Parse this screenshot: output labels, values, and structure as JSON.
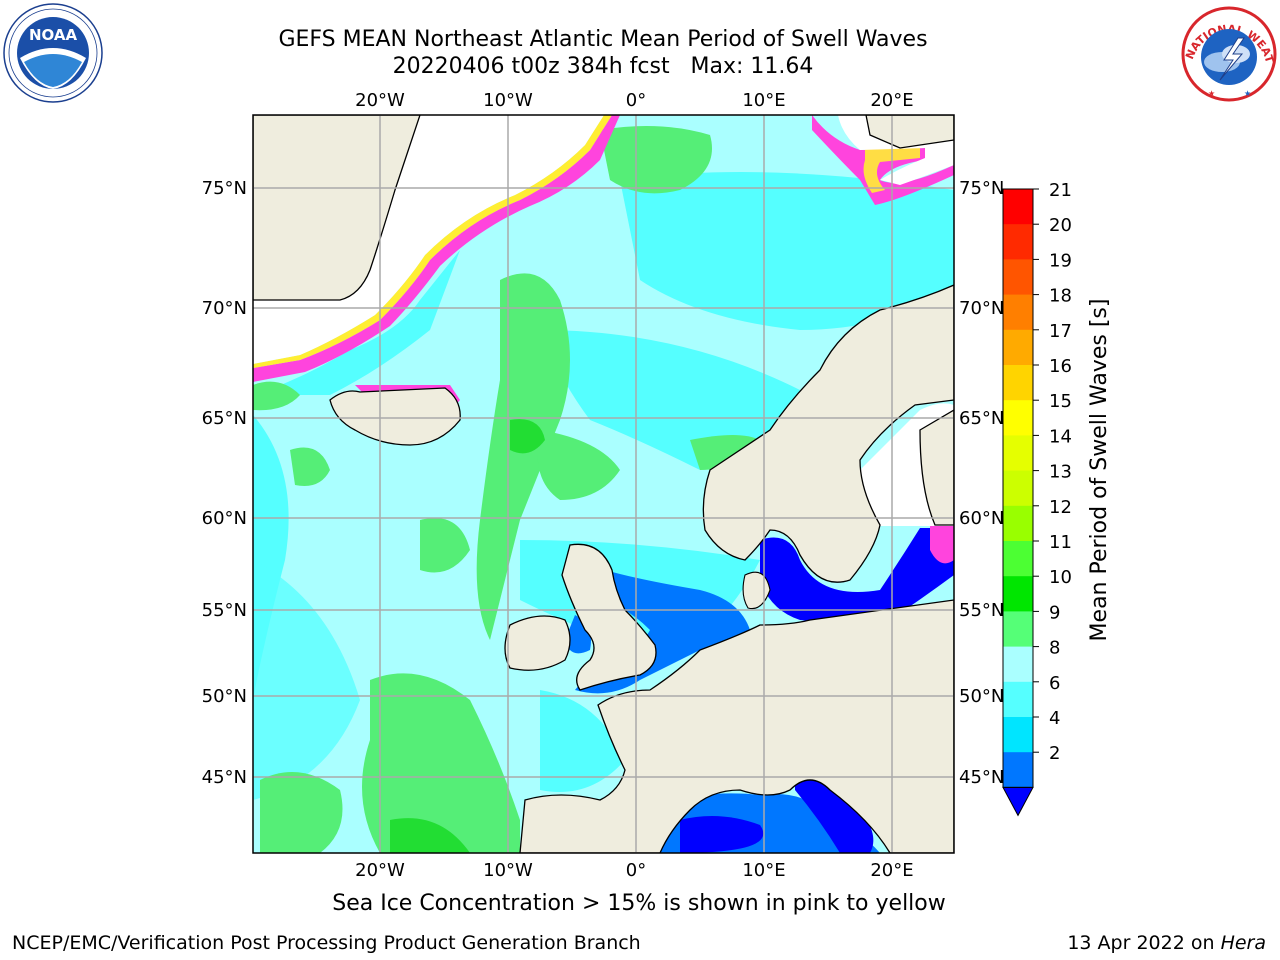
{
  "title_line1": "GEFS MEAN Northeast Atlantic Mean Period of Swell Waves",
  "title_line2": "20220406 t00z 384h fcst   Max: 11.64",
  "caption": "Sea Ice Concentration > 15% is shown in pink to yellow",
  "footer_left": "NCEP/EMC/Verification Post Processing Product Generation Branch",
  "footer_date": "13 Apr 2022 on ",
  "footer_machine": "Hera",
  "map": {
    "lon_labels_top": [
      "20°W",
      "10°W",
      "0°",
      "10°E",
      "20°E"
    ],
    "lon_labels_bottom": [
      "20°W",
      "10°W",
      "0°",
      "10°E",
      "20°E"
    ],
    "lat_labels_left": [
      "75°N",
      "70°N",
      "65°N",
      "60°N",
      "55°N",
      "50°N",
      "45°N"
    ],
    "lat_labels_right": [
      "75°N",
      "70°N",
      "65°N",
      "60°N",
      "55°N",
      "50°N",
      "45°N"
    ]
  },
  "colorbar": {
    "label": "Mean Period of Swell Waves [s]",
    "ticks": [
      "21",
      "20",
      "19",
      "18",
      "17",
      "16",
      "15",
      "14",
      "13",
      "12",
      "11",
      "10",
      "9",
      "8",
      "6",
      "4",
      "2"
    ],
    "colors": [
      "#ff0000",
      "#ff2a00",
      "#ff5500",
      "#ff7f00",
      "#ffaa00",
      "#ffd400",
      "#ffff00",
      "#e5ff00",
      "#ccff00",
      "#99ff00",
      "#4cff33",
      "#00e600",
      "#55ff77",
      "#aaffff",
      "#55ffff",
      "#00e5ff",
      "#0077ff"
    ],
    "extend_color": "#0000ff"
  },
  "colors": {
    "land": "#efedde",
    "ocean_light": "#aaffff",
    "ocean_cyan": "#55ffff",
    "swell_green": "#55ee77",
    "low_blue": "#0077ff",
    "deep_blue": "#0000ff",
    "ice_pink": "#ff44dd",
    "ice_yellow": "#ffee33"
  },
  "logos": {
    "noaa": "NOAA",
    "nws_top": "NATIONAL WEATHER SERVICE"
  }
}
